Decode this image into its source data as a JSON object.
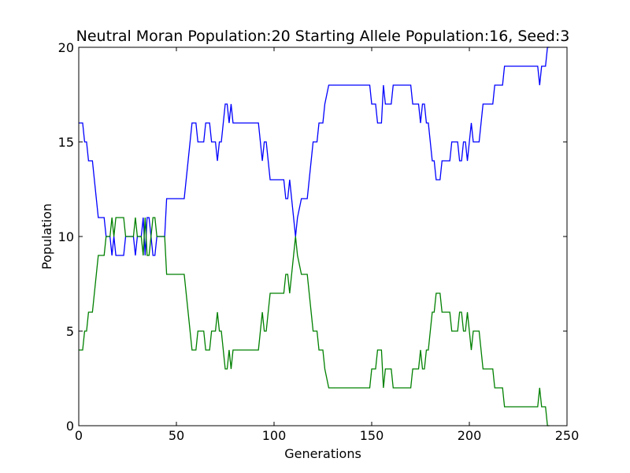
{
  "chart_data": {
    "type": "line",
    "title": "Neutral Moran Population:20 Starting Allele Population:16, Seed:3",
    "xlabel": "Generations",
    "ylabel": "Population",
    "xlim": [
      0,
      250
    ],
    "ylim": [
      0,
      20
    ],
    "xticks": [
      0,
      50,
      100,
      150,
      200,
      250
    ],
    "yticks": [
      0,
      5,
      10,
      15,
      20
    ],
    "grid": false,
    "series": [
      {
        "color": "#0000ff",
        "points": [
          [
            0,
            16
          ],
          [
            2,
            16
          ],
          [
            3,
            15
          ],
          [
            4,
            15
          ],
          [
            5,
            14
          ],
          [
            7,
            14
          ],
          [
            9,
            12
          ],
          [
            10,
            11
          ],
          [
            13,
            11
          ],
          [
            14,
            10
          ],
          [
            16,
            10
          ],
          [
            17,
            9
          ],
          [
            18,
            10
          ],
          [
            19,
            9
          ],
          [
            23,
            9
          ],
          [
            24,
            10
          ],
          [
            28,
            10
          ],
          [
            29,
            9
          ],
          [
            30,
            10
          ],
          [
            32,
            10
          ],
          [
            33,
            11
          ],
          [
            34,
            9
          ],
          [
            35,
            11
          ],
          [
            36,
            11
          ],
          [
            37,
            10
          ],
          [
            38,
            9
          ],
          [
            39,
            9
          ],
          [
            40,
            10
          ],
          [
            44,
            10
          ],
          [
            45,
            12
          ],
          [
            54,
            12
          ],
          [
            57,
            15
          ],
          [
            58,
            16
          ],
          [
            60,
            16
          ],
          [
            61,
            15
          ],
          [
            64,
            15
          ],
          [
            65,
            16
          ],
          [
            67,
            16
          ],
          [
            68,
            15
          ],
          [
            70,
            15
          ],
          [
            71,
            14
          ],
          [
            72,
            15
          ],
          [
            73,
            15
          ],
          [
            75,
            17
          ],
          [
            76,
            17
          ],
          [
            77,
            16
          ],
          [
            78,
            17
          ],
          [
            79,
            16
          ],
          [
            92,
            16
          ],
          [
            93,
            15
          ],
          [
            94,
            14
          ],
          [
            95,
            15
          ],
          [
            96,
            15
          ],
          [
            98,
            13
          ],
          [
            105,
            13
          ],
          [
            106,
            12
          ],
          [
            107,
            12
          ],
          [
            108,
            13
          ],
          [
            110,
            11
          ],
          [
            111,
            10
          ],
          [
            112,
            11
          ],
          [
            114,
            12
          ],
          [
            117,
            12
          ],
          [
            119,
            14
          ],
          [
            120,
            15
          ],
          [
            122,
            15
          ],
          [
            123,
            16
          ],
          [
            125,
            16
          ],
          [
            126,
            17
          ],
          [
            128,
            18
          ],
          [
            149,
            18
          ],
          [
            150,
            17
          ],
          [
            152,
            17
          ],
          [
            153,
            16
          ],
          [
            155,
            16
          ],
          [
            156,
            18
          ],
          [
            157,
            17
          ],
          [
            160,
            17
          ],
          [
            161,
            18
          ],
          [
            170,
            18
          ],
          [
            171,
            17
          ],
          [
            174,
            17
          ],
          [
            175,
            16
          ],
          [
            176,
            17
          ],
          [
            177,
            17
          ],
          [
            178,
            16
          ],
          [
            179,
            16
          ],
          [
            181,
            14
          ],
          [
            182,
            14
          ],
          [
            183,
            13
          ],
          [
            185,
            13
          ],
          [
            186,
            14
          ],
          [
            190,
            14
          ],
          [
            191,
            15
          ],
          [
            194,
            15
          ],
          [
            195,
            14
          ],
          [
            196,
            14
          ],
          [
            197,
            15
          ],
          [
            198,
            15
          ],
          [
            199,
            14
          ],
          [
            200,
            15
          ],
          [
            201,
            16
          ],
          [
            202,
            15
          ],
          [
            205,
            15
          ],
          [
            207,
            17
          ],
          [
            212,
            17
          ],
          [
            213,
            18
          ],
          [
            217,
            18
          ],
          [
            218,
            19
          ],
          [
            235,
            19
          ],
          [
            236,
            18
          ],
          [
            237,
            19
          ],
          [
            239,
            19
          ],
          [
            240,
            20
          ],
          [
            241,
            20
          ]
        ]
      },
      {
        "color": "#008000",
        "points": [
          [
            0,
            4
          ],
          [
            2,
            4
          ],
          [
            3,
            5
          ],
          [
            4,
            5
          ],
          [
            5,
            6
          ],
          [
            7,
            6
          ],
          [
            9,
            8
          ],
          [
            10,
            9
          ],
          [
            13,
            9
          ],
          [
            14,
            10
          ],
          [
            16,
            10
          ],
          [
            17,
            11
          ],
          [
            18,
            10
          ],
          [
            19,
            11
          ],
          [
            23,
            11
          ],
          [
            24,
            10
          ],
          [
            28,
            10
          ],
          [
            29,
            11
          ],
          [
            30,
            10
          ],
          [
            32,
            10
          ],
          [
            33,
            9
          ],
          [
            34,
            11
          ],
          [
            35,
            9
          ],
          [
            36,
            9
          ],
          [
            37,
            10
          ],
          [
            38,
            11
          ],
          [
            39,
            11
          ],
          [
            40,
            10
          ],
          [
            44,
            10
          ],
          [
            45,
            8
          ],
          [
            54,
            8
          ],
          [
            57,
            5
          ],
          [
            58,
            4
          ],
          [
            60,
            4
          ],
          [
            61,
            5
          ],
          [
            64,
            5
          ],
          [
            65,
            4
          ],
          [
            67,
            4
          ],
          [
            68,
            5
          ],
          [
            70,
            5
          ],
          [
            71,
            6
          ],
          [
            72,
            5
          ],
          [
            73,
            5
          ],
          [
            75,
            3
          ],
          [
            76,
            3
          ],
          [
            77,
            4
          ],
          [
            78,
            3
          ],
          [
            79,
            4
          ],
          [
            92,
            4
          ],
          [
            93,
            5
          ],
          [
            94,
            6
          ],
          [
            95,
            5
          ],
          [
            96,
            5
          ],
          [
            98,
            7
          ],
          [
            105,
            7
          ],
          [
            106,
            8
          ],
          [
            107,
            8
          ],
          [
            108,
            7
          ],
          [
            110,
            9
          ],
          [
            111,
            10
          ],
          [
            112,
            9
          ],
          [
            114,
            8
          ],
          [
            117,
            8
          ],
          [
            119,
            6
          ],
          [
            120,
            5
          ],
          [
            122,
            5
          ],
          [
            123,
            4
          ],
          [
            125,
            4
          ],
          [
            126,
            3
          ],
          [
            128,
            2
          ],
          [
            149,
            2
          ],
          [
            150,
            3
          ],
          [
            152,
            3
          ],
          [
            153,
            4
          ],
          [
            155,
            4
          ],
          [
            156,
            2
          ],
          [
            157,
            3
          ],
          [
            160,
            3
          ],
          [
            161,
            2
          ],
          [
            170,
            2
          ],
          [
            171,
            3
          ],
          [
            174,
            3
          ],
          [
            175,
            4
          ],
          [
            176,
            3
          ],
          [
            177,
            3
          ],
          [
            178,
            4
          ],
          [
            179,
            4
          ],
          [
            181,
            6
          ],
          [
            182,
            6
          ],
          [
            183,
            7
          ],
          [
            185,
            7
          ],
          [
            186,
            6
          ],
          [
            190,
            6
          ],
          [
            191,
            5
          ],
          [
            194,
            5
          ],
          [
            195,
            6
          ],
          [
            196,
            6
          ],
          [
            197,
            5
          ],
          [
            198,
            5
          ],
          [
            199,
            6
          ],
          [
            200,
            5
          ],
          [
            201,
            4
          ],
          [
            202,
            5
          ],
          [
            205,
            5
          ],
          [
            207,
            3
          ],
          [
            212,
            3
          ],
          [
            213,
            2
          ],
          [
            217,
            2
          ],
          [
            218,
            1
          ],
          [
            235,
            1
          ],
          [
            236,
            2
          ],
          [
            237,
            1
          ],
          [
            239,
            1
          ],
          [
            240,
            0
          ],
          [
            241,
            0
          ]
        ]
      }
    ]
  }
}
